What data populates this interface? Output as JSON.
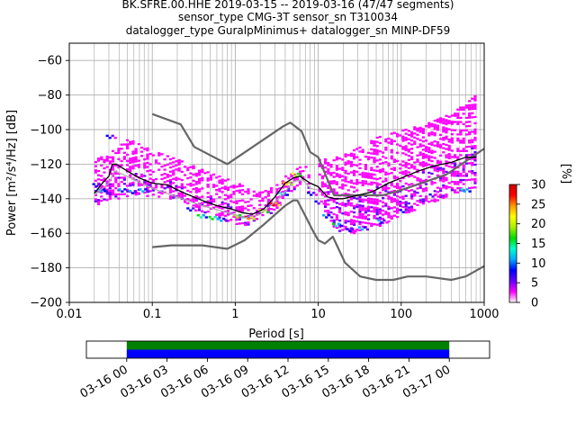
{
  "title_lines": [
    "BK.SFRE.00.HHE   2019-03-15 -- 2019-03-16  (47/47 segments)",
    "sensor_type CMG-3T sensor_sn T310034",
    "datalogger_type GuralpMinimus+ datalogger_sn MINP-DF59"
  ],
  "chart_data": {
    "type": "heatmap",
    "xlabel": "Period [s]",
    "ylabel": "Power [m²/s⁴/Hz] [dB]",
    "xscale": "log",
    "xlim": [
      0.01,
      1000
    ],
    "ylim": [
      -200,
      -50
    ],
    "x_ticks": [
      {
        "v": 0.01,
        "label": "0.01"
      },
      {
        "v": 0.1,
        "label": "0.1"
      },
      {
        "v": 1,
        "label": "1"
      },
      {
        "v": 10,
        "label": "10"
      },
      {
        "v": 100,
        "label": "100"
      },
      {
        "v": 1000,
        "label": "1000"
      }
    ],
    "y_ticks": [
      {
        "v": -60,
        "label": "−60"
      },
      {
        "v": -80,
        "label": "−80"
      },
      {
        "v": -100,
        "label": "−100"
      },
      {
        "v": -120,
        "label": "−120"
      },
      {
        "v": -140,
        "label": "−140"
      },
      {
        "v": -160,
        "label": "−160"
      },
      {
        "v": -180,
        "label": "−180"
      },
      {
        "v": -200,
        "label": "−200"
      }
    ],
    "grid": true,
    "colorbar": {
      "label": "[%]",
      "range": [
        0,
        30
      ],
      "ticks": [
        {
          "v": 0,
          "label": "0"
        },
        {
          "v": 5,
          "label": "5"
        },
        {
          "v": 10,
          "label": "10"
        },
        {
          "v": 15,
          "label": "15"
        },
        {
          "v": 20,
          "label": "20"
        },
        {
          "v": 25,
          "label": "25"
        },
        {
          "v": 30,
          "label": "30"
        }
      ],
      "colors": [
        "#ffffff",
        "#ff00ff",
        "#6600ff",
        "#0000ff",
        "#00aaff",
        "#00ffcc",
        "#00dd00",
        "#aaee00",
        "#ffff00",
        "#ff9900",
        "#ff0000",
        "#cc0000"
      ]
    },
    "series": [
      {
        "name": "",
        "kind": "noise model",
        "color": "#666666",
        "points": [
          [
            0.1,
            -91
          ],
          [
            0.22,
            -97
          ],
          [
            0.32,
            -110
          ],
          [
            0.8,
            -120
          ],
          [
            3.8,
            -98
          ],
          [
            4.6,
            -96
          ],
          [
            6.3,
            -101
          ],
          [
            8,
            -113
          ],
          [
            10,
            -116
          ],
          [
            15.5,
            -138
          ],
          [
            21,
            -138
          ],
          [
            60,
            -138
          ],
          [
            100,
            -135
          ],
          [
            350,
            -126
          ],
          [
            1000,
            -111
          ]
        ]
      },
      {
        "name": "",
        "kind": "noise model",
        "color": "#666666",
        "points": [
          [
            0.1,
            -168
          ],
          [
            0.17,
            -167
          ],
          [
            0.4,
            -167
          ],
          [
            0.8,
            -169
          ],
          [
            1.3,
            -164
          ],
          [
            2.2,
            -155
          ],
          [
            4,
            -144
          ],
          [
            5,
            -141
          ],
          [
            5.6,
            -141
          ],
          [
            7,
            -150
          ],
          [
            8.5,
            -158
          ],
          [
            10,
            -164
          ],
          [
            12,
            -166
          ],
          [
            15,
            -162
          ],
          [
            21,
            -177
          ],
          [
            32,
            -185
          ],
          [
            50,
            -187
          ],
          [
            80,
            -187
          ],
          [
            120,
            -185
          ],
          [
            200,
            -185
          ],
          [
            400,
            -187
          ],
          [
            600,
            -185
          ],
          [
            1000,
            -179
          ]
        ]
      },
      {
        "name": "",
        "kind": "mean",
        "color": "#000000",
        "points": [
          [
            0.02,
            -137
          ],
          [
            0.025,
            -131
          ],
          [
            0.03,
            -127
          ],
          [
            0.033,
            -120
          ],
          [
            0.037,
            -120
          ],
          [
            0.05,
            -124
          ],
          [
            0.07,
            -128
          ],
          [
            0.1,
            -131
          ],
          [
            0.15,
            -132
          ],
          [
            0.25,
            -137
          ],
          [
            0.4,
            -141
          ],
          [
            0.6,
            -144
          ],
          [
            0.9,
            -146
          ],
          [
            1.2,
            -148
          ],
          [
            1.6,
            -149
          ],
          [
            2.2,
            -146
          ],
          [
            3,
            -139
          ],
          [
            4,
            -131
          ],
          [
            5,
            -128
          ],
          [
            6,
            -127
          ],
          [
            8,
            -131
          ],
          [
            10,
            -133
          ],
          [
            13,
            -139
          ],
          [
            16,
            -140
          ],
          [
            20,
            -140
          ],
          [
            30,
            -138
          ],
          [
            45,
            -136
          ],
          [
            70,
            -131
          ],
          [
            100,
            -128
          ],
          [
            160,
            -124
          ],
          [
            250,
            -121
          ],
          [
            400,
            -119
          ],
          [
            600,
            -116
          ],
          [
            800,
            -116
          ]
        ]
      },
      {
        "name": "",
        "kind": "mode",
        "color": "#aaaaaa",
        "points": [
          [
            0.02,
            -138
          ],
          [
            0.03,
            -131
          ],
          [
            0.035,
            -124
          ],
          [
            0.05,
            -127
          ],
          [
            0.1,
            -134
          ],
          [
            0.2,
            -139
          ],
          [
            0.4,
            -144
          ],
          [
            0.8,
            -148
          ],
          [
            1.3,
            -151
          ],
          [
            2,
            -149
          ],
          [
            3,
            -142
          ],
          [
            4,
            -136
          ],
          [
            5,
            -130
          ],
          [
            6.5,
            -129
          ],
          [
            8,
            -134
          ],
          [
            10,
            -135
          ]
        ]
      }
    ],
    "density_bands": [
      {
        "x": [
          0.02,
          0.03,
          0.05,
          0.1,
          0.2,
          0.5,
          1,
          1.5,
          2,
          3,
          4,
          5,
          6,
          7,
          8
        ],
        "upper": [
          -117,
          -113,
          -105,
          -112,
          -117,
          -125,
          -130,
          -135,
          -136,
          -132,
          -126,
          -123,
          -121,
          -121,
          -124
        ],
        "lower": [
          -143,
          -141,
          -138,
          -138,
          -140,
          -150,
          -154,
          -155,
          -152,
          -147,
          -139,
          -134,
          -132,
          -134,
          -140
        ]
      },
      {
        "x": [
          10,
          15,
          20,
          30,
          50,
          100,
          200,
          400,
          600,
          800
        ],
        "upper": [
          -117,
          -116,
          -114,
          -110,
          -104,
          -100,
          -96,
          -90,
          -84,
          -79
        ],
        "lower": [
          -141,
          -156,
          -160,
          -159,
          -156,
          -149,
          -143,
          -137,
          -134,
          -133
        ]
      }
    ],
    "hot_cells": [
      {
        "x": 0.022,
        "y": -132,
        "pct": 9
      },
      {
        "x": 0.025,
        "y": -135,
        "pct": 12
      },
      {
        "x": 0.03,
        "y": -136,
        "pct": 8
      },
      {
        "x": 0.032,
        "y": -104,
        "pct": 9
      },
      {
        "x": 0.045,
        "y": -135,
        "pct": 11
      },
      {
        "x": 0.06,
        "y": -136,
        "pct": 10
      },
      {
        "x": 0.08,
        "y": -135,
        "pct": 12
      },
      {
        "x": 0.3,
        "y": -146,
        "pct": 9
      },
      {
        "x": 0.4,
        "y": -150,
        "pct": 15
      },
      {
        "x": 0.55,
        "y": -151,
        "pct": 17
      },
      {
        "x": 0.7,
        "y": -152,
        "pct": 12
      },
      {
        "x": 1.1,
        "y": -150,
        "pct": 20
      },
      {
        "x": 1.5,
        "y": -151,
        "pct": 26
      },
      {
        "x": 2.2,
        "y": -147,
        "pct": 22
      },
      {
        "x": 3,
        "y": -143,
        "pct": 28
      },
      {
        "x": 3.8,
        "y": -137,
        "pct": 14
      },
      {
        "x": 4.3,
        "y": -131,
        "pct": 24
      },
      {
        "x": 5.5,
        "y": -126,
        "pct": 21
      },
      {
        "x": 8.5,
        "y": -137,
        "pct": 9
      },
      {
        "x": 10.5,
        "y": -142,
        "pct": 8
      },
      {
        "x": 13,
        "y": -150,
        "pct": 11
      },
      {
        "x": 17,
        "y": -155,
        "pct": 15
      },
      {
        "x": 25,
        "y": -158,
        "pct": 9
      },
      {
        "x": 35,
        "y": -157,
        "pct": 12
      },
      {
        "x": 60,
        "y": -153,
        "pct": 10
      },
      {
        "x": 110,
        "y": -147,
        "pct": 9
      },
      {
        "x": 250,
        "y": -138,
        "pct": 8
      },
      {
        "x": 600,
        "y": -135,
        "pct": 14
      }
    ]
  },
  "time_axis": {
    "ticks": [
      "03-16 00",
      "03-16 03",
      "03-16 06",
      "03-16 09",
      "03-16 12",
      "03-16 15",
      "03-16 18",
      "03-16 21",
      "03-17 00"
    ],
    "start_hour": -3,
    "end_hour": 27,
    "data_start_hour": 0,
    "data_end_hour": 24,
    "band_colors": [
      "#008000",
      "#0000ff"
    ]
  }
}
